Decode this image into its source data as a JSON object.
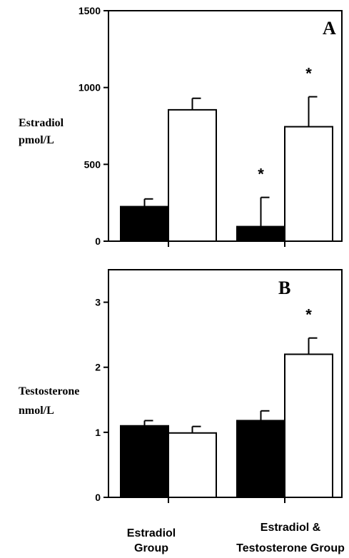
{
  "chart_data": [
    {
      "type": "bar",
      "panel_label": "A",
      "ylabel_lines": [
        "Estradiol",
        "pmol/L"
      ],
      "ylim": [
        0,
        1500
      ],
      "yticks": [
        0,
        500,
        1000,
        1500
      ],
      "categories": [
        "Estradiol Group",
        "Estradiol & Testosterone Group"
      ],
      "series": [
        {
          "fill": "#000000",
          "values": [
            225,
            95
          ],
          "errors": [
            50,
            190
          ]
        },
        {
          "fill": "#ffffff",
          "values": [
            855,
            745
          ],
          "errors": [
            75,
            195
          ]
        }
      ],
      "significance_marker": "*",
      "significant": [
        [
          false,
          true
        ],
        [
          false,
          true
        ]
      ]
    },
    {
      "type": "bar",
      "panel_label": "B",
      "ylabel_lines": [
        "Testosterone",
        "nmol/L"
      ],
      "ylim": [
        0,
        3.5
      ],
      "yticks": [
        0,
        1,
        2,
        3
      ],
      "categories": [
        "Estradiol Group",
        "Estradiol & Testosterone Group"
      ],
      "series": [
        {
          "fill": "#000000",
          "values": [
            1.1,
            1.18
          ],
          "errors": [
            0.08,
            0.15
          ]
        },
        {
          "fill": "#ffffff",
          "values": [
            0.99,
            2.2
          ],
          "errors": [
            0.1,
            0.25
          ]
        }
      ],
      "significance_marker": "*",
      "significant": [
        [
          false,
          false
        ],
        [
          false,
          true
        ]
      ]
    }
  ],
  "group_labels": [
    [
      "Estradiol",
      "Group"
    ],
    [
      "Estradiol &",
      "Testosterone Group"
    ]
  ]
}
